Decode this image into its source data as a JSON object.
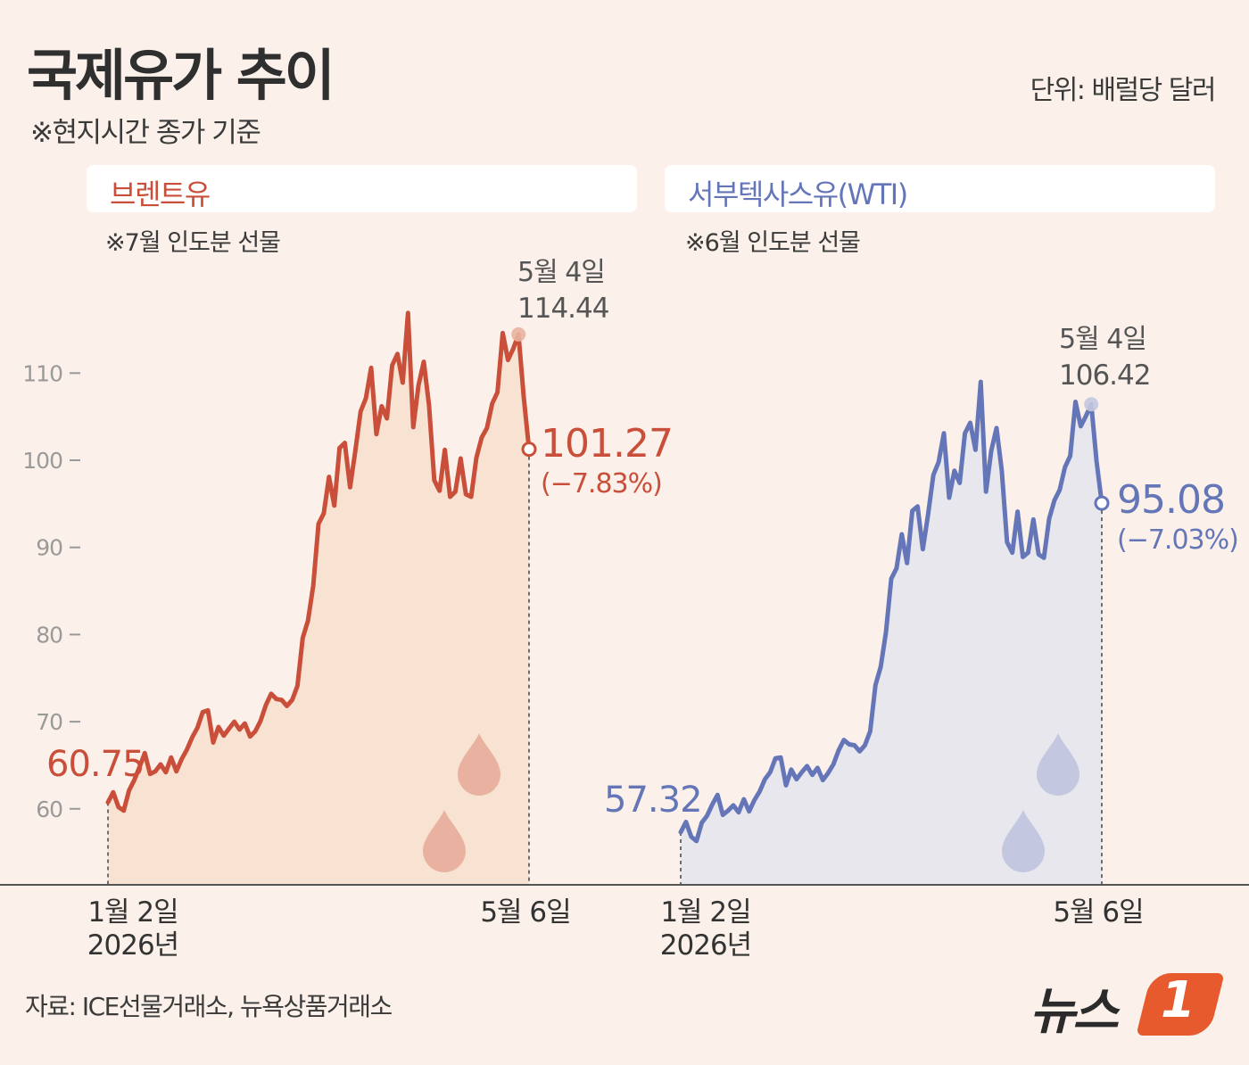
{
  "title": "국제유가 추이",
  "subtitle": "※현지시간 종가 기준",
  "unit": "단위: 배럴당 달러",
  "source": "자료: ICE선물거래소, 뉴욕상품거래소",
  "logo": {
    "text": "뉴스",
    "number": "1"
  },
  "colors": {
    "background": "#fbf1ea",
    "brent": "#c94f3a",
    "brent_fill": "#f8e3d2",
    "brent_drop": "#e9b2a0",
    "wti": "#6476b8",
    "wti_fill": "#e8e7ee",
    "wti_drop": "#c3c8e0",
    "logo_accent": "#e65a2e"
  },
  "y_axis": {
    "ticks": [
      60,
      70,
      80,
      90,
      100,
      110
    ],
    "tick_labels": [
      "60",
      "70",
      "80",
      "90",
      "100",
      "110"
    ],
    "ylim": [
      50,
      120
    ]
  },
  "chart_data": [
    {
      "type": "line",
      "title": "브렌트유",
      "note": "※7월 인도분 선물",
      "x_start_label": [
        "1월 2일",
        "2026년"
      ],
      "x_end_label": "5월 6일",
      "start_value_label": "60.75",
      "peak_label": [
        "5월 4일",
        "114.44"
      ],
      "end_value_label": "101.27",
      "end_change_label": "(−7.83%)",
      "start_value": 60.75,
      "peak_value": 114.44,
      "end_value": 101.27,
      "values": [
        60.75,
        61.9,
        60.2,
        59.8,
        62.1,
        63.3,
        64.8,
        66.4,
        64.0,
        64.3,
        65.1,
        64.2,
        65.9,
        64.3,
        65.7,
        66.8,
        68.2,
        69.3,
        71.1,
        71.3,
        67.6,
        69.4,
        68.4,
        69.2,
        70.0,
        69.1,
        69.8,
        68.3,
        68.9,
        70.1,
        71.9,
        73.2,
        72.6,
        72.5,
        71.8,
        72.5,
        74.1,
        79.6,
        81.6,
        85.6,
        92.7,
        93.9,
        98.1,
        94.8,
        101.4,
        102.0,
        96.9,
        101.1,
        105.6,
        107.1,
        110.6,
        103.0,
        106.2,
        104.8,
        110.9,
        112.2,
        108.9,
        116.9,
        103.8,
        108.6,
        111.3,
        106.3,
        97.7,
        96.5,
        101.2,
        95.8,
        96.4,
        100.2,
        96.1,
        95.8,
        100.3,
        102.6,
        103.7,
        106.5,
        107.8,
        114.6,
        111.5,
        112.8,
        114.44,
        107.2,
        101.27
      ]
    },
    {
      "type": "line",
      "title": "서부텍사스유(WTI)",
      "note": "※6월 인도분 선물",
      "x_start_label": [
        "1월 2일",
        "2026년"
      ],
      "x_end_label": "5월 6일",
      "start_value_label": "57.32",
      "peak_label": [
        "5월 4일",
        "106.42"
      ],
      "end_value_label": "95.08",
      "end_change_label": "(−7.03%)",
      "start_value": 57.32,
      "peak_value": 106.42,
      "end_value": 95.08,
      "values": [
        57.32,
        58.5,
        56.8,
        56.3,
        58.4,
        59.2,
        60.5,
        61.6,
        59.3,
        59.8,
        60.4,
        59.6,
        61.1,
        59.7,
        61.0,
        62.0,
        63.4,
        64.2,
        65.8,
        65.9,
        62.7,
        64.5,
        63.4,
        64.2,
        64.9,
        63.9,
        64.7,
        63.3,
        64.1,
        65.1,
        66.7,
        67.9,
        67.4,
        67.3,
        66.6,
        67.3,
        68.9,
        74.2,
        76.3,
        80.3,
        86.4,
        87.6,
        91.5,
        88.2,
        94.2,
        94.7,
        89.8,
        93.8,
        98.3,
        99.8,
        103.1,
        95.7,
        98.8,
        97.4,
        103.1,
        104.3,
        101.2,
        109.0,
        96.4,
        101.1,
        103.7,
        98.8,
        90.6,
        89.4,
        94.1,
        88.9,
        89.4,
        93.2,
        89.2,
        88.8,
        93.3,
        95.4,
        96.6,
        99.2,
        100.5,
        106.7,
        103.9,
        105.1,
        106.42,
        99.9,
        95.08
      ]
    }
  ]
}
